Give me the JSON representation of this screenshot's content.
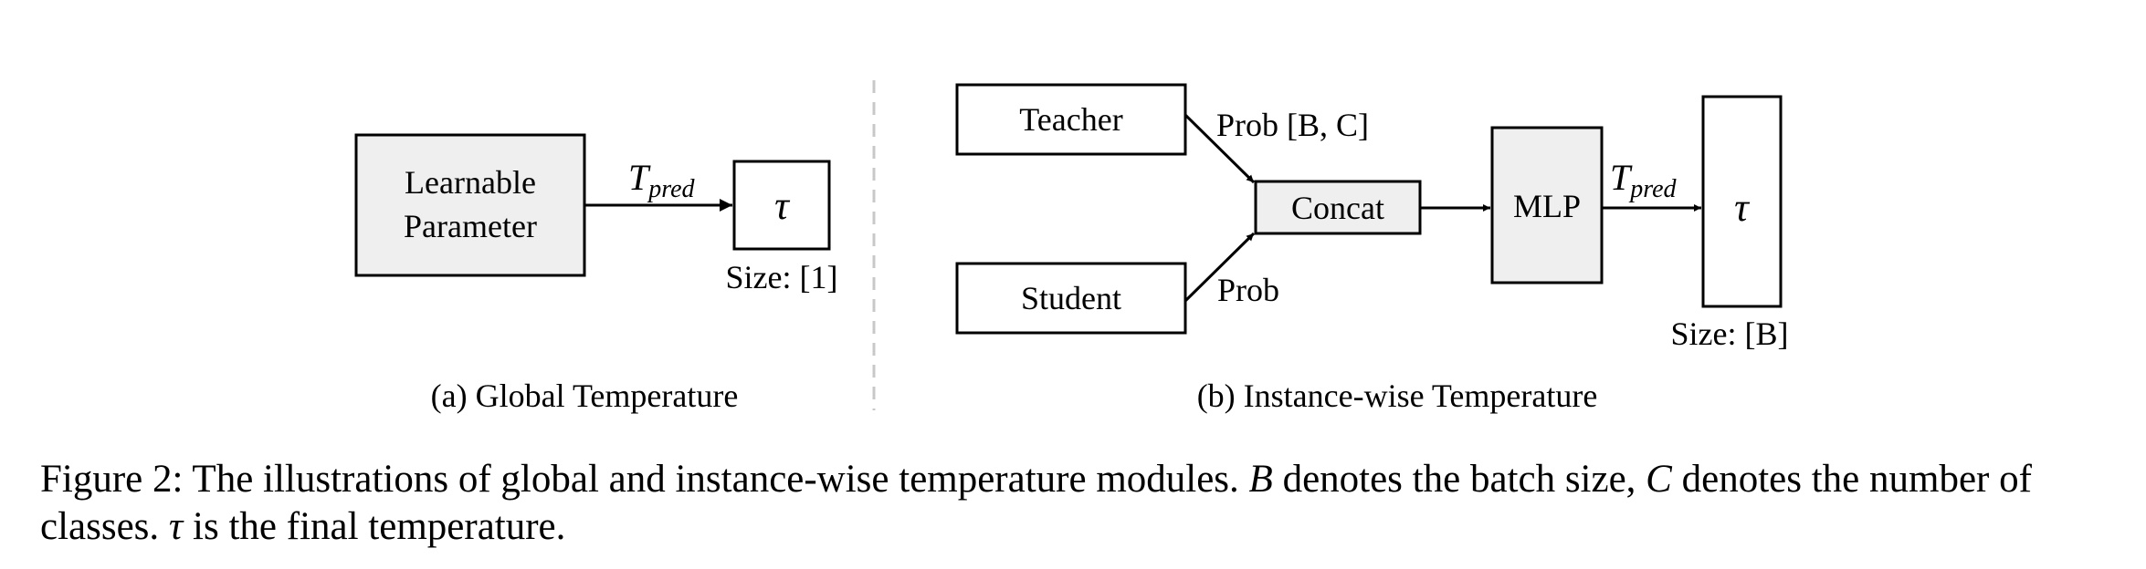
{
  "panel_a": {
    "box_line1": "Learnable",
    "box_line2": "Parameter",
    "arrow_label_main": "T",
    "arrow_label_sub": "pred",
    "tau": "τ",
    "size_label": "Size: [1]",
    "subtitle": "(a) Global Temperature"
  },
  "panel_b": {
    "teacher": "Teacher",
    "student": "Student",
    "teacher_edge_label": "Prob [B, C]",
    "student_edge_label": "Prob",
    "concat": "Concat",
    "mlp": "MLP",
    "arrow_label_main": "T",
    "arrow_label_sub": "pred",
    "tau": "τ",
    "size_label": "Size: [B]",
    "subtitle": "(b) Instance-wise Temperature"
  },
  "caption": {
    "prefix": "Figure 2: The illustrations of global and instance-wise temperature modules. ",
    "var_b": "B",
    "mid1": " denotes the batch size, ",
    "var_c": "C",
    "mid2": " denotes the number of classes. ",
    "var_tau": "τ",
    "suffix": " is the final temperature."
  },
  "colors": {
    "box_fill_gray": "#efefef",
    "box_fill_white": "#ffffff",
    "stroke": "#000000",
    "divider": "#c8c8c8"
  }
}
